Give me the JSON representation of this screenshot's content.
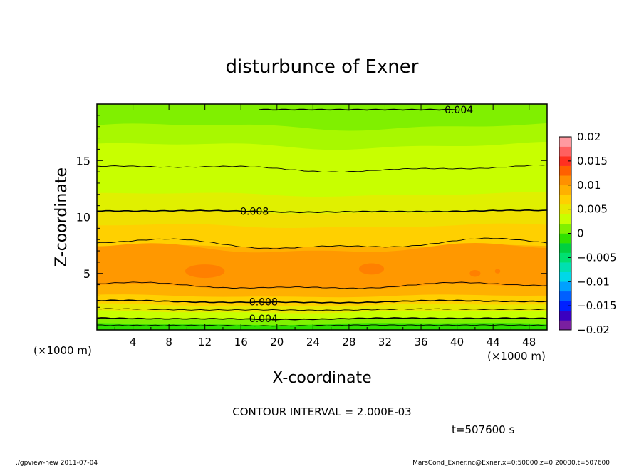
{
  "chart_data": {
    "type": "heatmap",
    "title": "disturbunce of Exner",
    "xlabel": "X-coordinate",
    "ylabel": "Z-coordinate",
    "x_unit": "(×1000 m)",
    "z_unit": "(×1000 m)",
    "xlim": [
      0,
      50
    ],
    "ylim": [
      0,
      20
    ],
    "x_ticks": [
      "4",
      "8",
      "12",
      "16",
      "20",
      "24",
      "28",
      "32",
      "36",
      "40",
      "44",
      "48"
    ],
    "y_ticks": [
      "5",
      "10",
      "15"
    ],
    "colorbar": {
      "range": [
        -0.02,
        0.02
      ],
      "tick_labels": [
        "0.02",
        "0.015",
        "0.01",
        "0.005",
        "0",
        "−0.005",
        "−0.01",
        "−0.015",
        "−0.02"
      ],
      "colors": [
        "#7a1fa0",
        "#3a00c0",
        "#0020ff",
        "#0060ff",
        "#00a0ff",
        "#00d8e8",
        "#00e0b0",
        "#00e070",
        "#00d040",
        "#30e000",
        "#80f000",
        "#c8ff00",
        "#e8e800",
        "#ffd000",
        "#ffb000",
        "#ff9000",
        "#ff6000",
        "#ff3020",
        "#ff6060",
        "#ff9aa0"
      ]
    },
    "contour_labels": [
      {
        "text": "0.004",
        "x": 40.2,
        "z": 19.5
      },
      {
        "text": "0.008",
        "x": 17.5,
        "z": 10.5
      },
      {
        "text": "0.008",
        "x": 18.5,
        "z": 2.5
      },
      {
        "text": "0.004",
        "x": 18.5,
        "z": 1.0
      }
    ],
    "contour_interval": "CONTOUR INTERVAL = 2.000E-03",
    "time_label": "t=507600 s"
  },
  "footer": {
    "left": "./gpview-new  2011-07-04",
    "right": "MarsCond_Exner.nc@Exner,x=0:50000,z=0:20000,t=507600"
  }
}
